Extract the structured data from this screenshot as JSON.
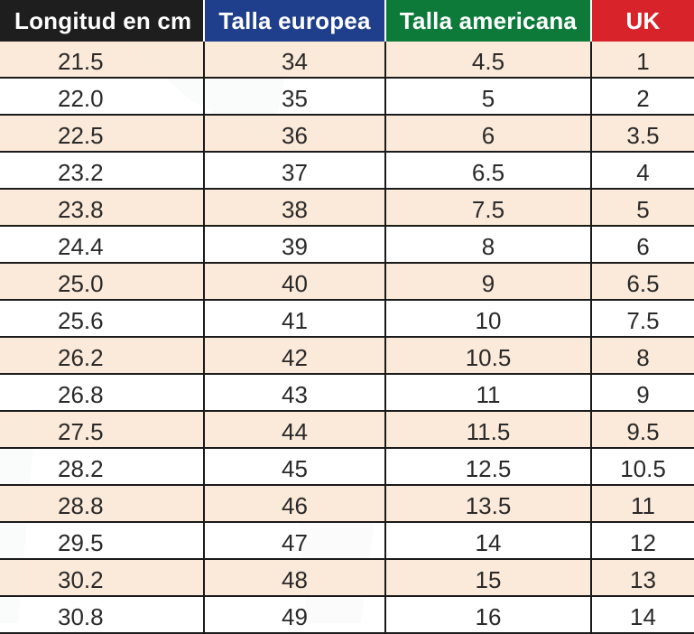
{
  "colors": {
    "header_length": "#1e1e1e",
    "header_eu": "#1f3f8c",
    "header_us": "#0d7a3a",
    "header_uk": "#d8232a",
    "row_alt": "#fbe8d6",
    "grid": "#1a1a1a"
  },
  "headers": {
    "length": "Longitud en cm",
    "eu": "Talla europea",
    "us": "Talla americana",
    "uk": "UK"
  },
  "rows": [
    {
      "cm": "21.5",
      "eu": "34",
      "us": "4.5",
      "uk": "1"
    },
    {
      "cm": "22.0",
      "eu": "35",
      "us": "5",
      "uk": "2"
    },
    {
      "cm": "22.5",
      "eu": "36",
      "us": "6",
      "uk": "3.5"
    },
    {
      "cm": "23.2",
      "eu": "37",
      "us": "6.5",
      "uk": "4"
    },
    {
      "cm": "23.8",
      "eu": "38",
      "us": "7.5",
      "uk": "5"
    },
    {
      "cm": "24.4",
      "eu": "39",
      "us": "8",
      "uk": "6"
    },
    {
      "cm": "25.0",
      "eu": "40",
      "us": "9",
      "uk": "6.5"
    },
    {
      "cm": "25.6",
      "eu": "41",
      "us": "10",
      "uk": "7.5"
    },
    {
      "cm": "26.2",
      "eu": "42",
      "us": "10.5",
      "uk": "8"
    },
    {
      "cm": "26.8",
      "eu": "43",
      "us": "11",
      "uk": "9"
    },
    {
      "cm": "27.5",
      "eu": "44",
      "us": "11.5",
      "uk": "9.5"
    },
    {
      "cm": "28.2",
      "eu": "45",
      "us": "12.5",
      "uk": "10.5"
    },
    {
      "cm": "28.8",
      "eu": "46",
      "us": "13.5",
      "uk": "11"
    },
    {
      "cm": "29.5",
      "eu": "47",
      "us": "14",
      "uk": "12"
    },
    {
      "cm": "30.2",
      "eu": "48",
      "us": "15",
      "uk": "13"
    },
    {
      "cm": "30.8",
      "eu": "49",
      "us": "16",
      "uk": "14"
    }
  ]
}
